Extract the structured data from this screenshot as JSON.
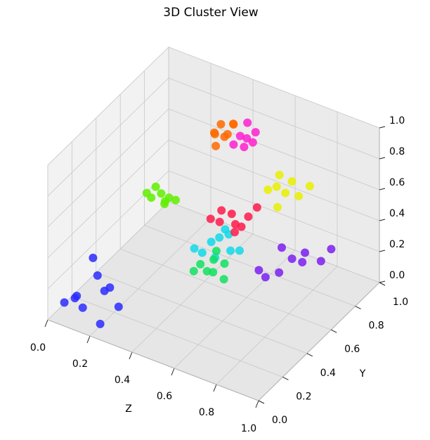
{
  "chart_data": {
    "type": "scatter3d",
    "title": "3D Cluster View",
    "xlabel": "Z",
    "ylabel": "Y",
    "xlim": [
      0,
      1
    ],
    "ylim": [
      0,
      1
    ],
    "zlim": [
      0,
      1
    ],
    "xticks": [
      {
        "value": 0,
        "label": "0.0"
      },
      {
        "value": 0.2,
        "label": "0.2"
      },
      {
        "value": 0.4,
        "label": "0.4"
      },
      {
        "value": 0.6,
        "label": "0.6"
      },
      {
        "value": 0.8,
        "label": "0.8"
      },
      {
        "value": 1,
        "label": "1.0"
      }
    ],
    "yticks": [
      {
        "value": 0,
        "label": "0.0"
      },
      {
        "value": 0.2,
        "label": "0.2"
      },
      {
        "value": 0.4,
        "label": "0.4"
      },
      {
        "value": 0.6,
        "label": "0.6"
      },
      {
        "value": 0.8,
        "label": "0.8"
      },
      {
        "value": 1,
        "label": "1.0"
      }
    ],
    "zticks": [
      {
        "value": 0,
        "label": "0.0"
      },
      {
        "value": 0.2,
        "label": "0.2"
      },
      {
        "value": 0.4,
        "label": "0.4"
      },
      {
        "value": 0.6,
        "label": "0.6"
      },
      {
        "value": 0.8,
        "label": "0.8"
      },
      {
        "value": 1,
        "label": "1.0"
      }
    ],
    "grid": true,
    "series": [
      {
        "color": "#2a2aff",
        "x": [
          0.05,
          0.08,
          0.12,
          0.15,
          0.2,
          0.22,
          0.1,
          0.18,
          0.25,
          0.06
        ],
        "y": [
          0.05,
          0.1,
          0.08,
          0.15,
          0.12,
          0.05,
          0.2,
          0.2,
          0.15,
          0.12
        ],
        "z": [
          0.1,
          0.12,
          0.08,
          0.25,
          0.2,
          0.05,
          0.3,
          0.15,
          0.1,
          0.08
        ]
      },
      {
        "color": "#7a1ff0",
        "x": [
          0.6,
          0.65,
          0.7,
          0.72,
          0.75,
          0.78,
          0.8,
          0.68,
          0.62
        ],
        "y": [
          0.7,
          0.78,
          0.8,
          0.85,
          0.82,
          0.9,
          0.95,
          0.75,
          0.72
        ],
        "z": [
          0.1,
          0.05,
          0.15,
          0.1,
          0.2,
          0.1,
          0.15,
          0.25,
          0.05
        ]
      },
      {
        "color": "#10d8e8",
        "x": [
          0.4,
          0.42,
          0.45,
          0.48,
          0.5,
          0.44,
          0.38,
          0.52,
          0.47
        ],
        "y": [
          0.58,
          0.62,
          0.6,
          0.66,
          0.64,
          0.7,
          0.55,
          0.68,
          0.6
        ],
        "z": [
          0.2,
          0.25,
          0.18,
          0.3,
          0.22,
          0.28,
          0.24,
          0.2,
          0.32
        ]
      },
      {
        "color": "#10e060",
        "x": [
          0.38,
          0.4,
          0.42,
          0.44,
          0.46,
          0.36,
          0.41,
          0.48
        ],
        "y": [
          0.6,
          0.62,
          0.64,
          0.6,
          0.66,
          0.58,
          0.68,
          0.62
        ],
        "z": [
          0.1,
          0.05,
          0.12,
          0.08,
          0.1,
          0.06,
          0.14,
          0.04
        ]
      },
      {
        "color": "#ff1a4a",
        "x": [
          0.46,
          0.5,
          0.52,
          0.55,
          0.48,
          0.54,
          0.44,
          0.58,
          0.5
        ],
        "y": [
          0.62,
          0.65,
          0.64,
          0.7,
          0.6,
          0.66,
          0.58,
          0.72,
          0.68
        ],
        "z": [
          0.4,
          0.45,
          0.35,
          0.42,
          0.5,
          0.38,
          0.44,
          0.48,
          0.36
        ]
      },
      {
        "color": "#ff6a00",
        "x": [
          0.4,
          0.42,
          0.44,
          0.46,
          0.38,
          0.48,
          0.43,
          0.45
        ],
        "y": [
          0.68,
          0.7,
          0.72,
          0.66,
          0.72,
          0.7,
          0.64,
          0.75
        ],
        "z": [
          0.9,
          0.95,
          0.88,
          0.92,
          0.85,
          0.98,
          0.86,
          0.93
        ]
      },
      {
        "color": "#ff20d0",
        "x": [
          0.5,
          0.52,
          0.55,
          0.53,
          0.5,
          0.56,
          0.48
        ],
        "y": [
          0.72,
          0.74,
          0.76,
          0.7,
          0.78,
          0.72,
          0.7
        ],
        "z": [
          0.9,
          0.88,
          0.92,
          0.86,
          0.94,
          0.89,
          0.85
        ]
      },
      {
        "color": "#60f000",
        "x": [
          0.25,
          0.28,
          0.3,
          0.26,
          0.32,
          0.24,
          0.29,
          0.31
        ],
        "y": [
          0.42,
          0.45,
          0.48,
          0.44,
          0.5,
          0.4,
          0.46,
          0.43
        ],
        "z": [
          0.6,
          0.62,
          0.58,
          0.66,
          0.56,
          0.64,
          0.55,
          0.6
        ]
      },
      {
        "color": "#e8f000",
        "x": [
          0.62,
          0.65,
          0.68,
          0.7,
          0.72,
          0.66,
          0.75,
          0.64
        ],
        "y": [
          0.74,
          0.76,
          0.78,
          0.8,
          0.82,
          0.75,
          0.86,
          0.8
        ],
        "z": [
          0.6,
          0.62,
          0.58,
          0.65,
          0.55,
          0.5,
          0.6,
          0.66
        ]
      }
    ]
  }
}
